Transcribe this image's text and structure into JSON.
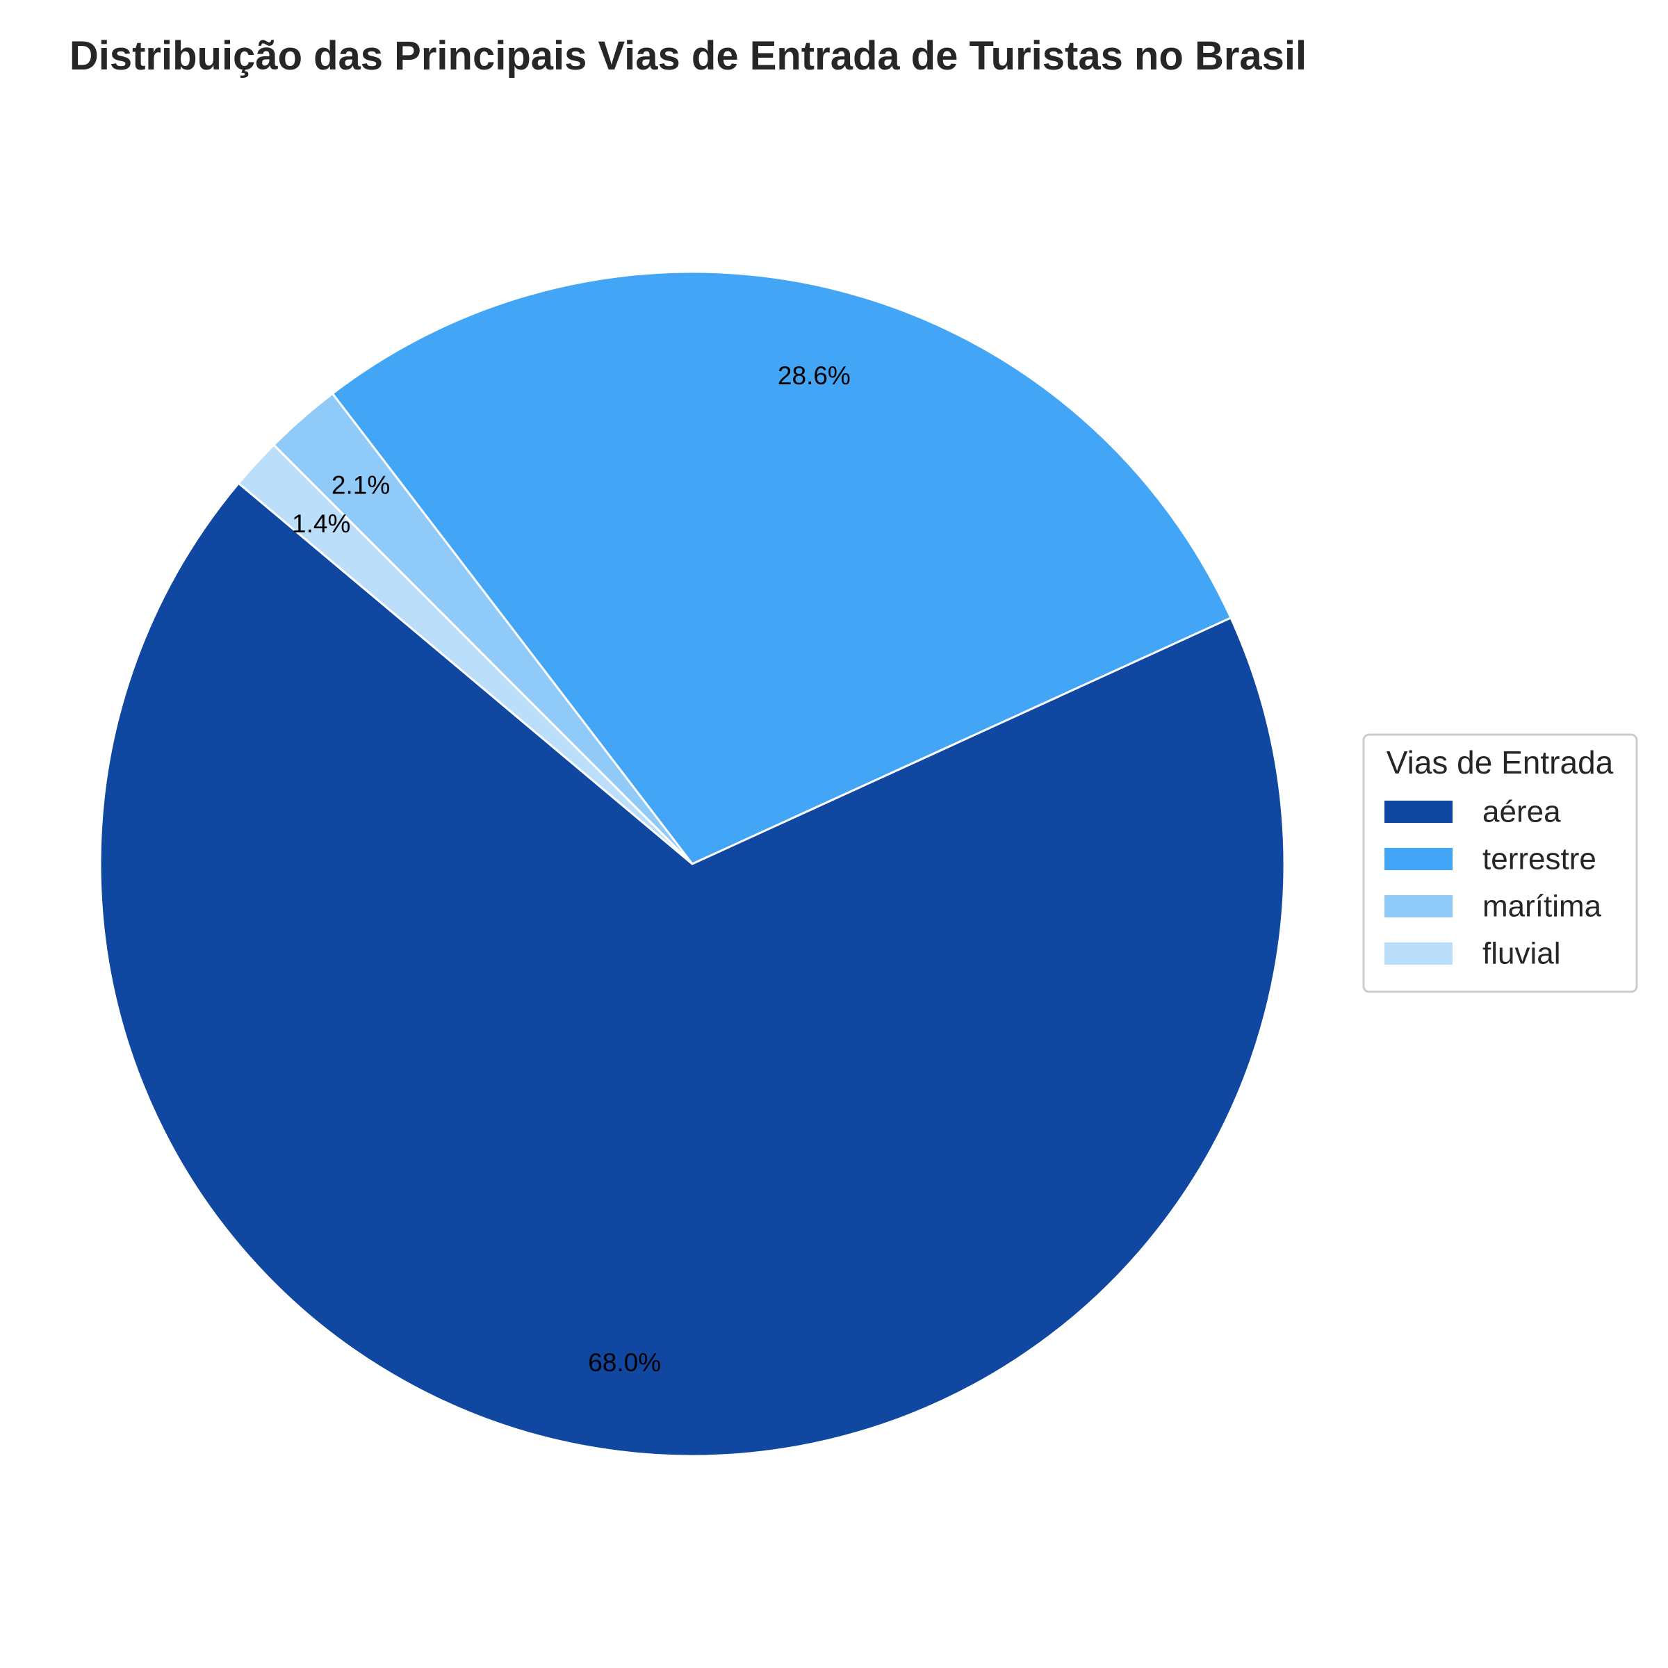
{
  "chart_data": {
    "type": "pie",
    "title": "Distribuição das Principais Vias de Entrada de Turistas no Brasil",
    "categories": [
      "aérea",
      "terrestre",
      "marítima",
      "fluvial"
    ],
    "values": [
      68.0,
      28.6,
      2.1,
      1.4
    ],
    "value_labels": [
      "68.0%",
      "28.6%",
      "2.1%",
      "1.4%"
    ],
    "colors": [
      "#0f47a1",
      "#42a5f5",
      "#90caf9",
      "#bbdefb"
    ],
    "legend": {
      "title": "Vias de Entrada",
      "position": "center-right"
    },
    "start_angle_deg": 140,
    "direction": "counterclockwise",
    "slice_edge_color": "#ffffff"
  }
}
